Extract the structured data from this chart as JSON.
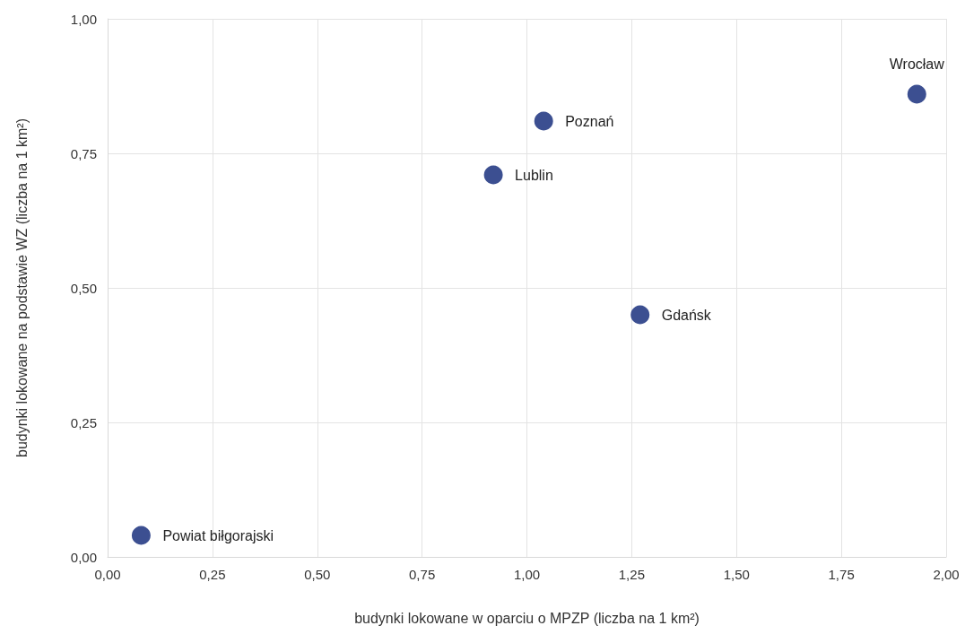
{
  "chart_data": {
    "type": "scatter",
    "xlabel": "budynki lokowane w oparciu o MPZP (liczba na 1 km²)",
    "ylabel": "budynki lokowane na podstawie WZ (liczba na 1 km²)",
    "x": [
      0.08,
      0.92,
      1.04,
      1.27,
      1.93
    ],
    "values": [
      0.04,
      0.71,
      0.81,
      0.45,
      0.86
    ],
    "color": "#0b2375",
    "marker": "circle",
    "grid": true,
    "xlim": [
      0,
      2
    ],
    "ylim": [
      0,
      1
    ],
    "xticks": [
      {
        "value": 0,
        "label": "0,00"
      },
      {
        "value": 0.25,
        "label": "0,25"
      },
      {
        "value": 0.5,
        "label": "0,50"
      },
      {
        "value": 0.75,
        "label": "0,75"
      },
      {
        "value": 1,
        "label": "1,00"
      },
      {
        "value": 1.25,
        "label": "1,25"
      },
      {
        "value": 1.5,
        "label": "1,50"
      },
      {
        "value": 1.75,
        "label": "1,75"
      },
      {
        "value": 2,
        "label": "2,00"
      }
    ],
    "yticks": [
      {
        "value": 0,
        "label": "0,00"
      },
      {
        "value": 0.25,
        "label": "0,25"
      },
      {
        "value": 0.5,
        "label": "0,50"
      },
      {
        "value": 0.75,
        "label": "0,75"
      },
      {
        "value": 1,
        "label": "1,00"
      }
    ],
    "annotations": [
      {
        "text": "Powiat biłgorajski",
        "x": 0.08,
        "y": 0.04
      },
      {
        "text": "Lublin",
        "x": 0.92,
        "y": 0.71
      },
      {
        "text": "Poznań",
        "x": 1.04,
        "y": 0.81
      },
      {
        "text": "Gdańsk",
        "x": 1.27,
        "y": 0.45
      },
      {
        "text": "Wrocław",
        "x": 1.93,
        "y": 0.86
      }
    ]
  }
}
